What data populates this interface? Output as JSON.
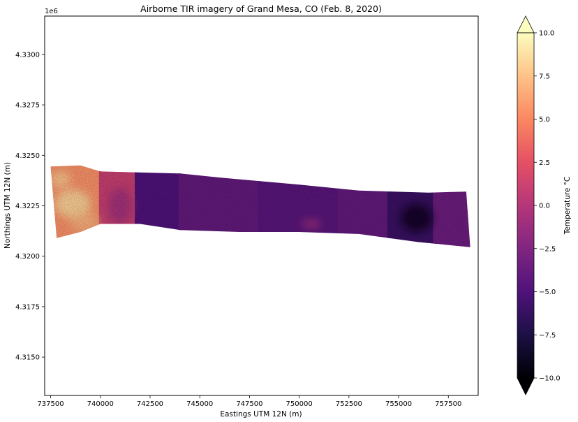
{
  "chart_data": {
    "type": "heatmap",
    "title": "Airborne TIR imagery of Grand Mesa, CO (Feb. 8, 2020)",
    "xlabel": "Eastings UTM 12N (m)",
    "ylabel": "Northings UTM 12N (m)",
    "y_offset_label": "1e6",
    "xlim": [
      737200,
      759000
    ],
    "ylim": [
      4313100,
      4331900
    ],
    "x_ticks": [
      737500,
      740000,
      742500,
      745000,
      747500,
      750000,
      752500,
      755000,
      757500
    ],
    "x_tick_labels": [
      "737500",
      "740000",
      "742500",
      "745000",
      "747500",
      "750000",
      "752500",
      "755000",
      "757500"
    ],
    "y_ticks": [
      4315000,
      4317500,
      4320000,
      4322500,
      4325000,
      4327500,
      4330000
    ],
    "y_tick_labels": [
      "4.3150",
      "4.3175",
      "4.3200",
      "4.3225",
      "4.3250",
      "4.3275",
      "4.3300"
    ],
    "grid": false,
    "colorbar": {
      "label": "Temperature °C",
      "colormap": "magma",
      "range": [
        -10,
        10
      ],
      "extend": "both",
      "ticks": [
        -10,
        -7.5,
        -5,
        -2.5,
        0,
        2.5,
        5,
        7.5,
        10
      ],
      "tick_labels": [
        "−10.0",
        "−7.5",
        "−5.0",
        "−2.5",
        "0.0",
        "2.5",
        "5.0",
        "7.5",
        "10.0"
      ]
    },
    "swath": {
      "top_edge": [
        [
          737500,
          4324450
        ],
        [
          739000,
          4324500
        ],
        [
          740000,
          4324200
        ],
        [
          744000,
          4324100
        ],
        [
          746000,
          4323900
        ],
        [
          750000,
          4323550
        ],
        [
          753000,
          4323250
        ],
        [
          756500,
          4323150
        ],
        [
          758400,
          4323200
        ]
      ],
      "bottom_edge": [
        [
          758600,
          4320450
        ],
        [
          756000,
          4320700
        ],
        [
          753000,
          4321100
        ],
        [
          750000,
          4321200
        ],
        [
          747000,
          4321200
        ],
        [
          744000,
          4321300
        ],
        [
          742000,
          4321600
        ],
        [
          740000,
          4321600
        ],
        [
          739000,
          4321200
        ],
        [
          737800,
          4320900
        ]
      ],
      "regions": [
        {
          "x": [
            737500,
            740200
          ],
          "y": [
            4321000,
            4324450
          ],
          "temp": 5.5
        },
        {
          "x": [
            740000,
            741800
          ],
          "y": [
            4321600,
            4324200
          ],
          "temp": 1.0
        },
        {
          "x": [
            741800,
            744000
          ],
          "y": [
            4321500,
            4324100
          ],
          "temp": -5.0
        },
        {
          "x": [
            744000,
            748000
          ],
          "y": [
            4321200,
            4324000
          ],
          "temp": -4.0
        },
        {
          "x": [
            748000,
            752000
          ],
          "y": [
            4321100,
            4323600
          ],
          "temp": -4.5
        },
        {
          "x": [
            752000,
            754500
          ],
          "y": [
            4321000,
            4323300
          ],
          "temp": -4.0
        },
        {
          "x": [
            754500,
            756800
          ],
          "y": [
            4320800,
            4323200
          ],
          "temp": -6.0
        },
        {
          "x": [
            756800,
            758600
          ],
          "y": [
            4320500,
            4323200
          ],
          "temp": -3.5
        }
      ],
      "features": [
        {
          "x": 738600,
          "y": 4322600,
          "temp": 8.5,
          "rx": 900,
          "ry": 700
        },
        {
          "x": 738000,
          "y": 4323800,
          "temp": 8.0,
          "rx": 500,
          "ry": 400
        },
        {
          "x": 739200,
          "y": 4321700,
          "temp": 7.0,
          "rx": 700,
          "ry": 450
        },
        {
          "x": 755900,
          "y": 4321900,
          "temp": -9.0,
          "rx": 800,
          "ry": 700
        },
        {
          "x": 750600,
          "y": 4321600,
          "temp": -0.5,
          "rx": 500,
          "ry": 200
        },
        {
          "x": 741000,
          "y": 4322500,
          "temp": -1.0,
          "rx": 600,
          "ry": 900
        }
      ]
    }
  }
}
